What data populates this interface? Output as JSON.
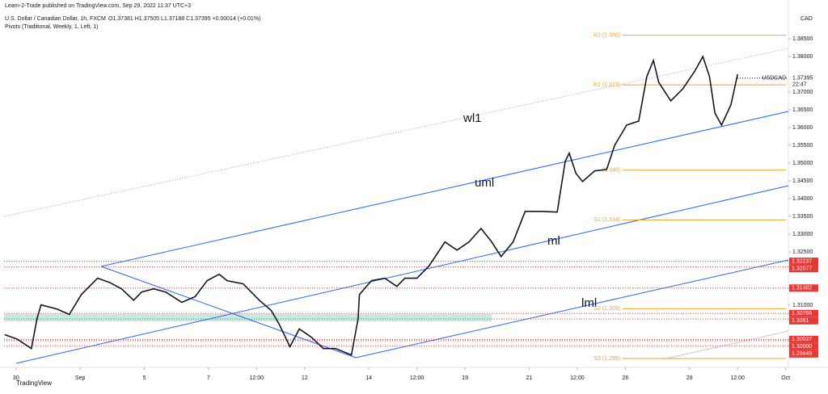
{
  "header": {
    "publisher": "Learn-2-Trade published on TradingView.com, Sep 29, 2022 11:37 UTC+3",
    "footer": "TradingView"
  },
  "chart_data": {
    "type": "line",
    "title": "U.S. Dollar / Canadian Dollar, 1h, FXCM",
    "ohlc": "O1.37381 H1.37505 L1.37188 C1.37395 +0.00014 (+0.01%)",
    "indicator": "Pivots (Traditional, Weekly, 1, Left, 1)",
    "currency": "CAD",
    "last_price": 1.37395,
    "countdown": "22:47",
    "x": [
      -8.5,
      0.6,
      11.5,
      15.7,
      18.7,
      30.8,
      39.9,
      48.9,
      61,
      70,
      79,
      88,
      94,
      103,
      112,
      124,
      134,
      143,
      152,
      158,
      170,
      182,
      191,
      197,
      205,
      212,
      221,
      230,
      239,
      251,
      256,
      257,
      266,
      276,
      285,
      291,
      300,
      309,
      321,
      330,
      339,
      348,
      356,
      363,
      372,
      381,
      393,
      405,
      411,
      414,
      419,
      424,
      433,
      442,
      448,
      457,
      466,
      472,
      477,
      481,
      490,
      499,
      508,
      514,
      519,
      523,
      528,
      535,
      540
    ],
    "series": [
      {
        "name": "USDCAD",
        "color": "#131722",
        "values": [
          1.3017,
          1.3005,
          1.2978,
          1.3062,
          1.3101,
          1.3089,
          1.3074,
          1.313,
          1.3176,
          1.3164,
          1.3146,
          1.3114,
          1.3137,
          1.3146,
          1.3137,
          1.3108,
          1.3124,
          1.3169,
          1.3187,
          1.3169,
          1.316,
          1.3114,
          1.3085,
          1.3046,
          1.2983,
          1.3033,
          1.301,
          1.2978,
          1.2978,
          1.296,
          1.3062,
          1.313,
          1.3169,
          1.3176,
          1.3153,
          1.3176,
          1.3176,
          1.321,
          1.3278,
          1.3255,
          1.3278,
          1.3316,
          1.3278,
          1.3237,
          1.3278,
          1.3364,
          1.3364,
          1.3362,
          1.3505,
          1.3528,
          1.3471,
          1.3448,
          1.3478,
          1.3482,
          1.355,
          1.3607,
          1.3618,
          1.3743,
          1.3789,
          1.3727,
          1.3675,
          1.3709,
          1.3759,
          1.38,
          1.3743,
          1.3641,
          1.3607,
          1.3664,
          1.375
        ]
      }
    ],
    "xlim": [
      -12,
      578
    ],
    "ylim": [
      1.2925,
      1.3959
    ],
    "xticks": [
      {
        "value": 0,
        "label": "30"
      },
      {
        "value": 48,
        "label": "Sep"
      },
      {
        "value": 96,
        "label": "5"
      },
      {
        "value": 144,
        "label": "7"
      },
      {
        "value": 180,
        "label": "12:00"
      },
      {
        "value": 216,
        "label": "12"
      },
      {
        "value": 264,
        "label": "14"
      },
      {
        "value": 300,
        "label": "12:00"
      },
      {
        "value": 336,
        "label": "19"
      },
      {
        "value": 384,
        "label": "21"
      },
      {
        "value": 420,
        "label": "12:00"
      },
      {
        "value": 456,
        "label": "26"
      },
      {
        "value": 504,
        "label": "28"
      },
      {
        "value": 540,
        "label": "12:00"
      },
      {
        "value": 576,
        "label": "Oct"
      }
    ],
    "yticks": [
      {
        "value": 1.385,
        "label": "1.38500"
      },
      {
        "value": 1.38,
        "label": "1.38000"
      },
      {
        "value": 1.37,
        "label": "1.37000"
      },
      {
        "value": 1.365,
        "label": "1.36500"
      },
      {
        "value": 1.36,
        "label": "1.36000"
      },
      {
        "value": 1.355,
        "label": "1.35500"
      },
      {
        "value": 1.35,
        "label": "1.35000"
      },
      {
        "value": 1.345,
        "label": "1.34500"
      },
      {
        "value": 1.34,
        "label": "1.34000"
      },
      {
        "value": 1.335,
        "label": "1.33500"
      },
      {
        "value": 1.33,
        "label": "1.33000"
      },
      {
        "value": 1.325,
        "label": "1.32500"
      },
      {
        "value": 1.31,
        "label": "1.31000"
      }
    ],
    "pivots": [
      {
        "label": "R2 (1.386)",
        "value": 1.386
      },
      {
        "label": "R1 (1.372)",
        "value": 1.372
      },
      {
        "label": "(1.348)",
        "value": 1.348
      },
      {
        "label": "S1 (1.334)",
        "value": 1.334
      },
      {
        "label": "S2 (1.309)",
        "value": 1.309
      },
      {
        "label": "S3 (1.295)",
        "value": 1.295
      }
    ],
    "levels": [
      1.32237,
      1.32077,
      1.31482,
      1.30766,
      1.3061,
      1.30037,
      {
        "value": 1.3,
        "label": "1.30000"
      },
      1.29849
    ],
    "annotations": [
      "wl1",
      "uml",
      "ml",
      "lml"
    ]
  }
}
